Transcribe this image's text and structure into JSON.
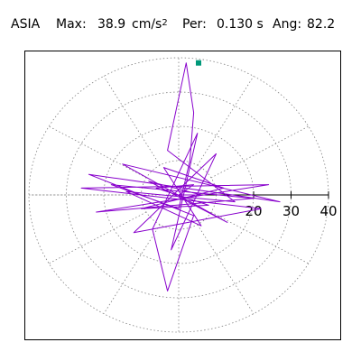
{
  "header": {
    "station": "ASIA",
    "max_label": "Max:",
    "max_value": "38.9",
    "max_unit": "cm/s",
    "max_unit_exp": "2",
    "per_label": "Per:",
    "per_value": "0.130 s",
    "ang_label": "Ang:",
    "ang_value": "82.2"
  },
  "colors": {
    "trace": "#8800cc",
    "marker": "#00997a",
    "grid": "#808080",
    "axis": "#000000"
  },
  "chart_data": {
    "type": "polar-hodograph",
    "title": "ASIA  Max: 38.9 cm/s2  Per: 0.130 s  Ang: 82.2",
    "radial_ticks": [
      20,
      30,
      40
    ],
    "grid_rings": [
      10,
      20,
      30,
      40
    ],
    "spoke_angles_deg": [
      0,
      30,
      60,
      90,
      120,
      150,
      180,
      210,
      240,
      270,
      300,
      330
    ],
    "grid": true,
    "max_amplitude": 38.9,
    "max_angle_deg": 82.2,
    "peak_marker": {
      "x": 5.3,
      "y": 38.5
    },
    "trace_path": [
      [
        0,
        0
      ],
      [
        4,
        3
      ],
      [
        -6,
        2
      ],
      [
        8,
        -3
      ],
      [
        -10,
        -4
      ],
      [
        12,
        2
      ],
      [
        -4,
        8
      ],
      [
        6,
        -9
      ],
      [
        -14,
        1
      ],
      [
        15,
        -2
      ],
      [
        -3,
        13
      ],
      [
        2,
        38.5
      ],
      [
        4,
        24
      ],
      [
        3,
        10
      ],
      [
        0,
        -4
      ],
      [
        -18,
        3
      ],
      [
        20,
        -1
      ],
      [
        -22,
        -5
      ],
      [
        24,
        3
      ],
      [
        -26,
        2
      ],
      [
        22,
        -4
      ],
      [
        -12,
        -11
      ],
      [
        10,
        12
      ],
      [
        -2,
        -16
      ],
      [
        5,
        18
      ],
      [
        -7,
        -10
      ],
      [
        -3,
        -28
      ],
      [
        4,
        -6
      ],
      [
        -24,
        6
      ],
      [
        27,
        -2
      ],
      [
        -15,
        9
      ],
      [
        13,
        -8
      ],
      [
        -8,
        4
      ],
      [
        6,
        0
      ],
      [
        0,
        0
      ]
    ]
  }
}
